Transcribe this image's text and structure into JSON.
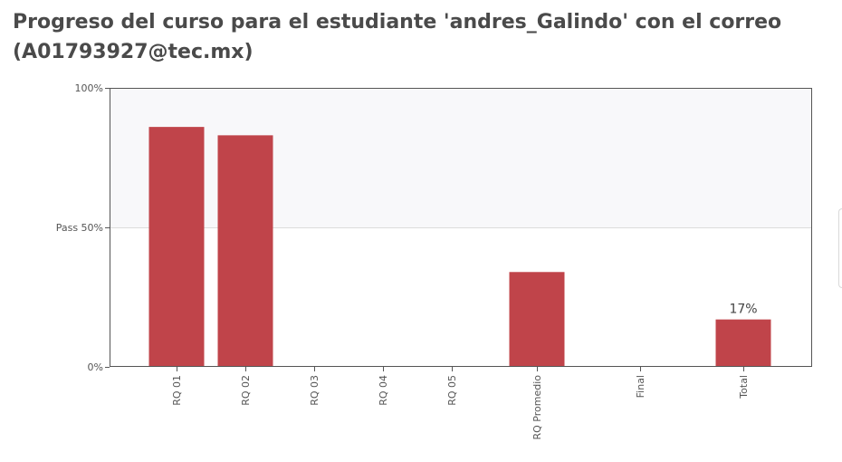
{
  "header": {
    "title": "Progreso del curso para el estudiante 'andres_Galindo' con el correo (A01793927@tec.mx)"
  },
  "chart_data": {
    "type": "bar",
    "categories": [
      "RQ 01",
      "RQ 02",
      "RQ 03",
      "RQ 04",
      "RQ 05",
      "RQ Promedio",
      "Final",
      "Total"
    ],
    "values": [
      86,
      83,
      0,
      0,
      0,
      34,
      0,
      17
    ],
    "data_labels": [
      "",
      "",
      "",
      "",
      "",
      "",
      "",
      "17%"
    ],
    "ylim": [
      0,
      100
    ],
    "y_ticks": [
      {
        "value": 0,
        "label": "0%"
      },
      {
        "value": 50,
        "label": "Pass 50%"
      },
      {
        "value": 100,
        "label": "100%"
      }
    ],
    "pass_region": [
      50,
      100
    ],
    "colors": {
      "bar": "#c0444a",
      "pass_band": "#f8f8fa",
      "axis": "#555555",
      "gridline": "#dcdcdc"
    }
  }
}
